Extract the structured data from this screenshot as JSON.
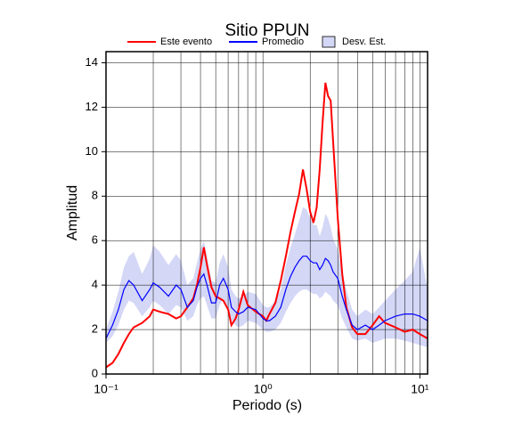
{
  "chart_data": {
    "type": "line",
    "title": "Sitio PPUN",
    "xlabel": "Periodo (s)",
    "ylabel": "Amplitud",
    "xscale": "log",
    "xlim": [
      0.1,
      11.2
    ],
    "ylim": [
      0,
      14.5
    ],
    "xticks": [
      {
        "value": 0.1,
        "label": "10⁻¹"
      },
      {
        "value": 1,
        "label": "10⁰"
      },
      {
        "value": 10,
        "label": "10¹"
      }
    ],
    "x_minor_ticks": [
      0.2,
      0.3,
      0.4,
      0.5,
      0.6,
      0.7,
      0.8,
      0.9,
      2,
      3,
      4,
      5,
      6,
      7,
      8,
      9
    ],
    "yticks": [
      0,
      2,
      4,
      6,
      8,
      10,
      12,
      14
    ],
    "grid": true,
    "legend": "top",
    "x": [
      0.1,
      0.11,
      0.12,
      0.13,
      0.14,
      0.15,
      0.17,
      0.19,
      0.2,
      0.22,
      0.25,
      0.28,
      0.3,
      0.33,
      0.36,
      0.38,
      0.4,
      0.42,
      0.44,
      0.47,
      0.5,
      0.53,
      0.56,
      0.6,
      0.63,
      0.67,
      0.7,
      0.75,
      0.8,
      0.9,
      1.0,
      1.05,
      1.1,
      1.2,
      1.3,
      1.4,
      1.5,
      1.6,
      1.7,
      1.8,
      1.9,
      2.0,
      2.1,
      2.2,
      2.3,
      2.4,
      2.5,
      2.6,
      2.7,
      2.8,
      3.0,
      3.2,
      3.4,
      3.7,
      4.0,
      4.5,
      5.0,
      5.5,
      6.0,
      7.0,
      8.0,
      9.0,
      10,
      11.2
    ],
    "series": [
      {
        "name": "Este evento",
        "color": "#ff0000",
        "values": [
          0.3,
          0.5,
          0.9,
          1.4,
          1.8,
          2.1,
          2.3,
          2.6,
          2.9,
          2.8,
          2.7,
          2.5,
          2.6,
          3.0,
          3.4,
          4.0,
          4.8,
          5.7,
          4.9,
          3.9,
          3.5,
          3.4,
          3.3,
          2.9,
          2.2,
          2.5,
          2.9,
          3.7,
          3.1,
          2.8,
          2.6,
          2.4,
          2.7,
          3.2,
          4.2,
          5.3,
          6.4,
          7.3,
          8.1,
          9.2,
          8.3,
          7.3,
          6.8,
          7.5,
          9.2,
          11.3,
          13.1,
          12.5,
          12.3,
          10.5,
          7.0,
          4.5,
          3.0,
          2.1,
          1.8,
          1.8,
          2.2,
          2.6,
          2.3,
          2.1,
          1.9,
          2.0,
          1.8,
          1.6
        ]
      },
      {
        "name": "Promedio",
        "color": "#0000ff",
        "values": [
          1.6,
          2.2,
          2.9,
          3.8,
          4.2,
          4.0,
          3.3,
          3.8,
          4.1,
          3.9,
          3.5,
          4.0,
          3.8,
          3.0,
          3.3,
          3.9,
          4.3,
          4.5,
          4.0,
          3.2,
          3.2,
          4.0,
          4.3,
          3.8,
          3.0,
          2.8,
          2.7,
          2.8,
          3.0,
          2.9,
          2.5,
          2.4,
          2.4,
          2.6,
          3.0,
          3.8,
          4.4,
          4.8,
          5.1,
          5.3,
          5.3,
          5.1,
          5.0,
          5.0,
          4.7,
          4.9,
          5.2,
          5.1,
          4.9,
          4.6,
          4.3,
          3.5,
          2.9,
          2.2,
          2.0,
          2.2,
          2.0,
          2.2,
          2.4,
          2.6,
          2.7,
          2.7,
          2.6,
          2.4
        ]
      }
    ],
    "band": {
      "name": "Desv. Est.",
      "color": "#d4d7f6",
      "edge": "#aab0ee",
      "lower": [
        1.4,
        1.7,
        2.2,
        2.9,
        3.3,
        3.2,
        2.6,
        3.0,
        3.3,
        3.1,
        2.7,
        3.1,
        3.0,
        2.4,
        2.6,
        3.1,
        3.4,
        3.5,
        3.1,
        2.5,
        2.5,
        3.1,
        3.4,
        3.0,
        2.4,
        2.2,
        2.1,
        2.2,
        2.4,
        2.3,
        2.0,
        1.9,
        1.9,
        2.0,
        2.3,
        2.8,
        3.2,
        3.5,
        3.7,
        3.8,
        3.8,
        3.7,
        3.6,
        3.6,
        3.4,
        3.5,
        3.7,
        3.6,
        3.5,
        3.3,
        3.1,
        2.5,
        2.1,
        1.6,
        1.5,
        1.6,
        1.4,
        1.5,
        1.6,
        1.6,
        1.5,
        1.4,
        1.3,
        1.2
      ],
      "upper": [
        2.0,
        2.8,
        3.7,
        4.8,
        5.3,
        5.5,
        4.5,
        5.2,
        5.8,
        5.5,
        4.9,
        5.4,
        5.1,
        4.0,
        4.3,
        5.0,
        5.6,
        6.0,
        5.3,
        4.2,
        4.1,
        5.0,
        5.4,
        4.8,
        3.8,
        3.5,
        3.4,
        3.5,
        3.7,
        3.6,
        3.1,
        3.0,
        3.0,
        3.3,
        3.8,
        4.9,
        5.7,
        6.3,
        6.9,
        7.5,
        7.4,
        7.0,
        6.7,
        6.7,
        6.2,
        6.6,
        7.2,
        7.0,
        6.6,
        6.1,
        5.6,
        4.6,
        3.8,
        2.9,
        2.6,
        2.9,
        2.7,
        3.0,
        3.3,
        3.8,
        4.2,
        4.6,
        5.7,
        3.8
      ]
    }
  }
}
